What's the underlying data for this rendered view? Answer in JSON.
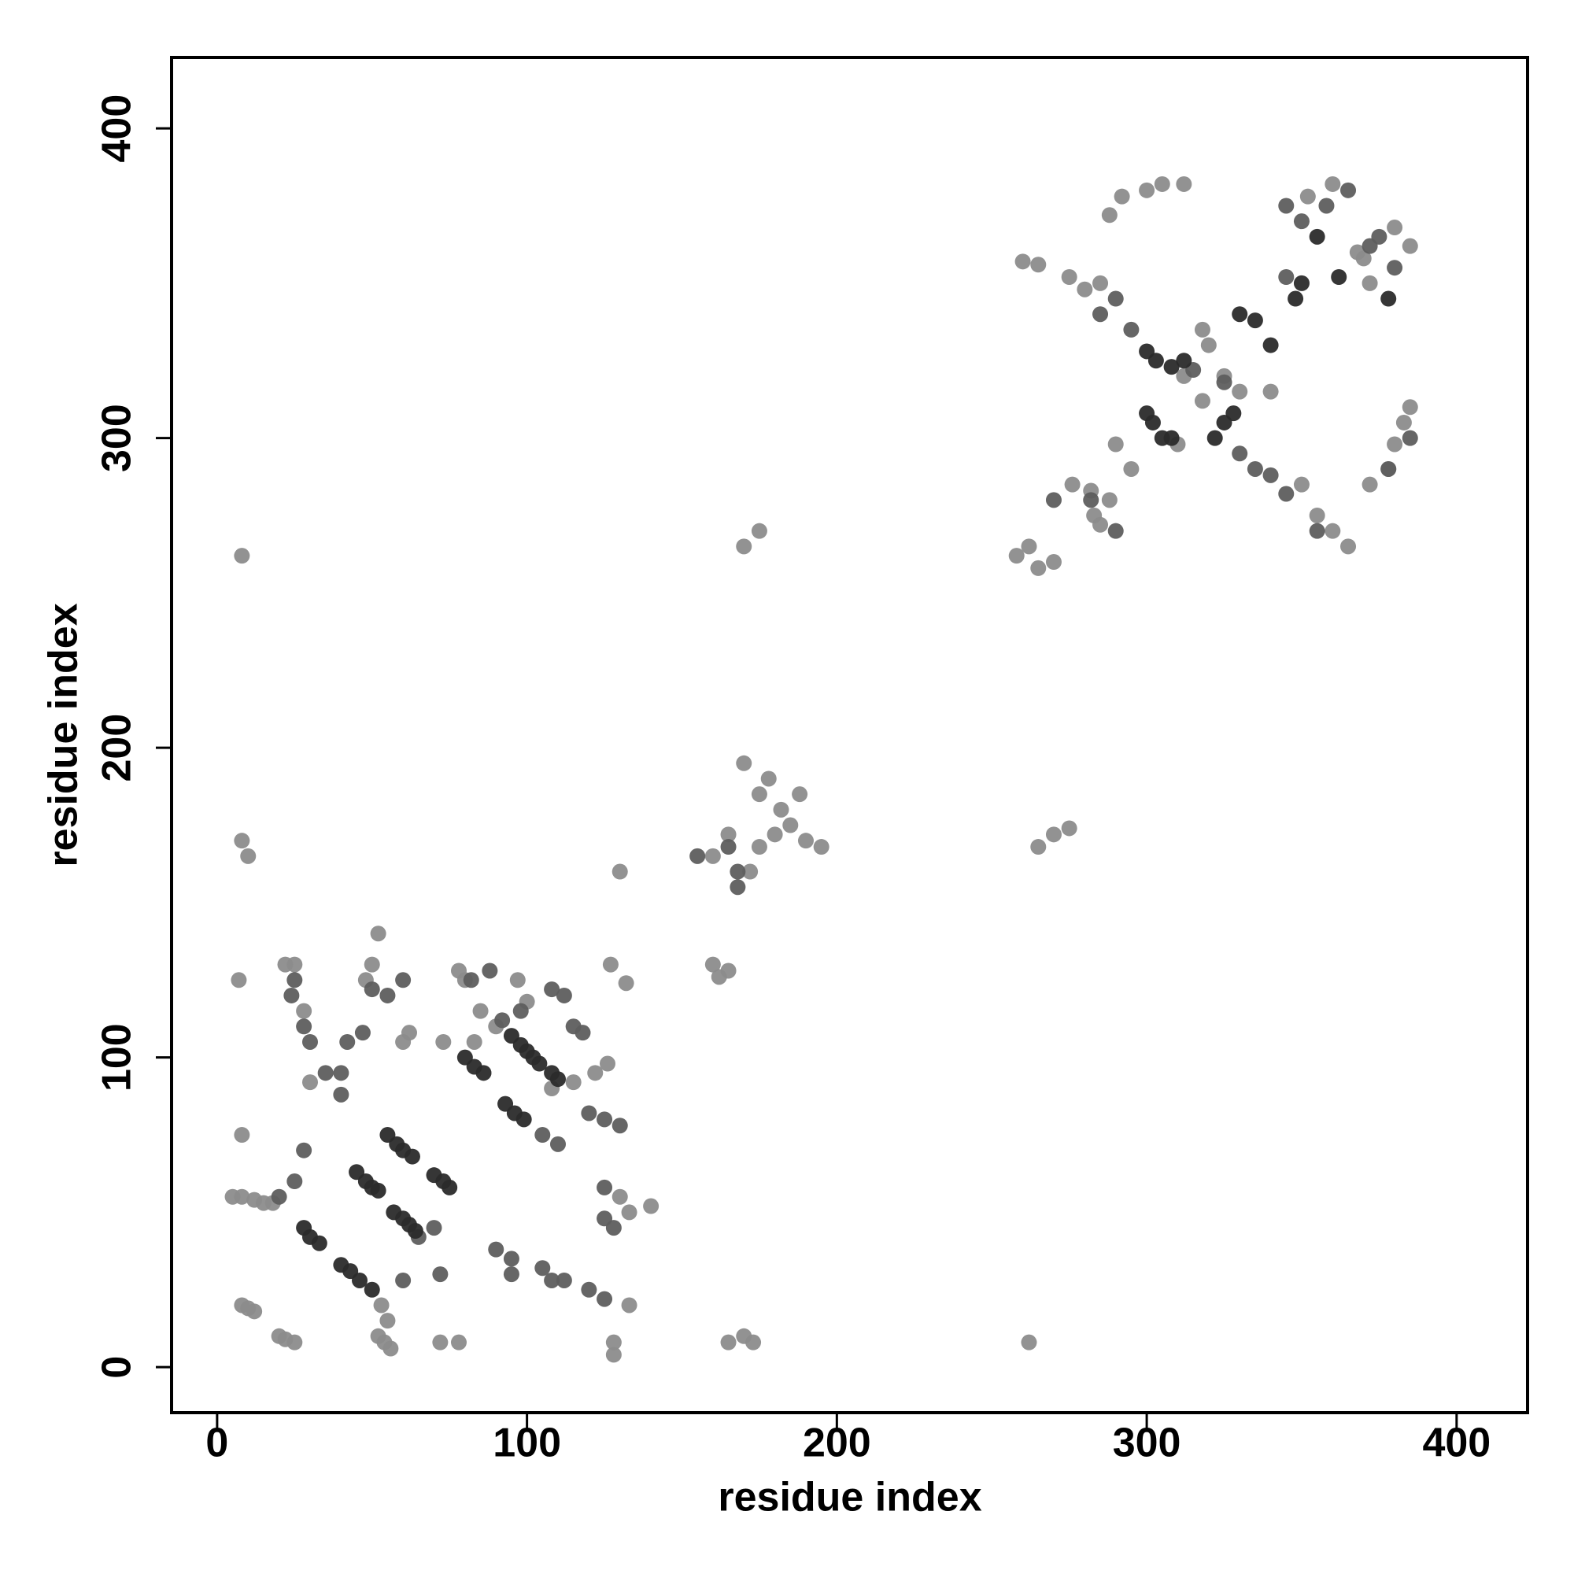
{
  "chart_data": {
    "type": "scatter",
    "x_label": "residue index",
    "y_label": "residue index",
    "xlim": [
      -14.7,
      422.9
    ],
    "ylim": [
      -14.7,
      422.9
    ],
    "xticks": [
      0,
      100,
      200,
      300,
      400
    ],
    "yticks": [
      0,
      100,
      200,
      300,
      400
    ],
    "series": [
      {
        "color": "#8c8c8c",
        "x": [
          5,
          8,
          12,
          15,
          18,
          8,
          10,
          12,
          20,
          22,
          25,
          52,
          54,
          56,
          55,
          53,
          8,
          7,
          25,
          22,
          28,
          50,
          52,
          48,
          30,
          60,
          62,
          73,
          78,
          80,
          83,
          85,
          90,
          97,
          100,
          108,
          115,
          122,
          126,
          127,
          130,
          132,
          130,
          133,
          140,
          133,
          128,
          128,
          165,
          170,
          173,
          78,
          72,
          8,
          10,
          8,
          160,
          162,
          165,
          175,
          178,
          170,
          182,
          185,
          190,
          195,
          180,
          175,
          172,
          188,
          165,
          160,
          170,
          175,
          262,
          265,
          270,
          275,
          258,
          265,
          262,
          270,
          283,
          285,
          288,
          290,
          295,
          310,
          282,
          276,
          280,
          285,
          275,
          265,
          260,
          288,
          292,
          300,
          305,
          312,
          320,
          318,
          325,
          330,
          340,
          350,
          355,
          360,
          365,
          372,
          378,
          380,
          385,
          383,
          385,
          380,
          370,
          352,
          360,
          368,
          372,
          318,
          312
        ],
        "y": [
          55,
          55,
          54,
          53,
          53,
          20,
          19,
          18,
          10,
          9,
          8,
          10,
          8,
          6,
          15,
          20,
          75,
          125,
          130,
          130,
          115,
          130,
          140,
          125,
          92,
          105,
          108,
          105,
          128,
          125,
          105,
          115,
          110,
          125,
          118,
          90,
          92,
          95,
          98,
          130,
          160,
          124,
          55,
          50,
          52,
          20,
          4,
          8,
          8,
          10,
          8,
          8,
          8,
          170,
          165,
          262,
          130,
          126,
          128,
          185,
          190,
          195,
          180,
          175,
          170,
          168,
          172,
          168,
          160,
          185,
          172,
          165,
          265,
          270,
          8,
          168,
          172,
          174,
          262,
          258,
          265,
          260,
          275,
          272,
          280,
          298,
          290,
          298,
          283,
          285,
          348,
          350,
          352,
          356,
          357,
          372,
          378,
          380,
          382,
          382,
          330,
          335,
          320,
          315,
          315,
          285,
          275,
          270,
          265,
          285,
          290,
          298,
          310,
          305,
          362,
          368,
          358,
          378,
          382,
          360,
          350,
          312,
          320
        ]
      },
      {
        "color": "#5e5e5e",
        "x": [
          25,
          24,
          28,
          30,
          35,
          40,
          40,
          42,
          47,
          50,
          55,
          60,
          25,
          28,
          20,
          65,
          70,
          72,
          60,
          90,
          95,
          95,
          105,
          108,
          112,
          120,
          125,
          125,
          128,
          125,
          112,
          108,
          115,
          118,
          120,
          125,
          130,
          105,
          110,
          88,
          82,
          92,
          98,
          168,
          165,
          155,
          168,
          290,
          285,
          295,
          315,
          325,
          330,
          335,
          340,
          345,
          355,
          345,
          350,
          358,
          365,
          372,
          375,
          380,
          345,
          378,
          385,
          282,
          290,
          270
        ],
        "y": [
          125,
          120,
          110,
          105,
          95,
          95,
          88,
          105,
          108,
          122,
          120,
          125,
          60,
          70,
          55,
          42,
          45,
          30,
          28,
          38,
          35,
          30,
          32,
          28,
          28,
          25,
          22,
          48,
          45,
          58,
          120,
          122,
          110,
          108,
          82,
          80,
          78,
          75,
          72,
          128,
          125,
          112,
          115,
          160,
          168,
          165,
          155,
          345,
          340,
          335,
          322,
          318,
          295,
          290,
          288,
          282,
          270,
          375,
          370,
          375,
          380,
          362,
          365,
          355,
          352,
          290,
          300,
          280,
          270,
          280
        ]
      },
      {
        "color": "#2b2b2b",
        "x": [
          28,
          30,
          33,
          40,
          43,
          46,
          50,
          55,
          58,
          60,
          63,
          57,
          60,
          62,
          64,
          45,
          48,
          50,
          52,
          80,
          83,
          86,
          95,
          98,
          100,
          102,
          104,
          108,
          110,
          93,
          96,
          99,
          70,
          73,
          75,
          300,
          303,
          308,
          312,
          300,
          302,
          305,
          308,
          322,
          325,
          328,
          348,
          355,
          362,
          378,
          335,
          330,
          340,
          350
        ],
        "y": [
          45,
          42,
          40,
          33,
          31,
          28,
          25,
          75,
          72,
          70,
          68,
          50,
          48,
          46,
          44,
          63,
          60,
          58,
          57,
          100,
          97,
          95,
          107,
          104,
          102,
          100,
          98,
          95,
          93,
          85,
          82,
          80,
          62,
          60,
          58,
          328,
          325,
          323,
          325,
          308,
          305,
          300,
          300,
          300,
          305,
          308,
          345,
          365,
          352,
          345,
          338,
          340,
          330,
          350
        ]
      }
    ]
  }
}
